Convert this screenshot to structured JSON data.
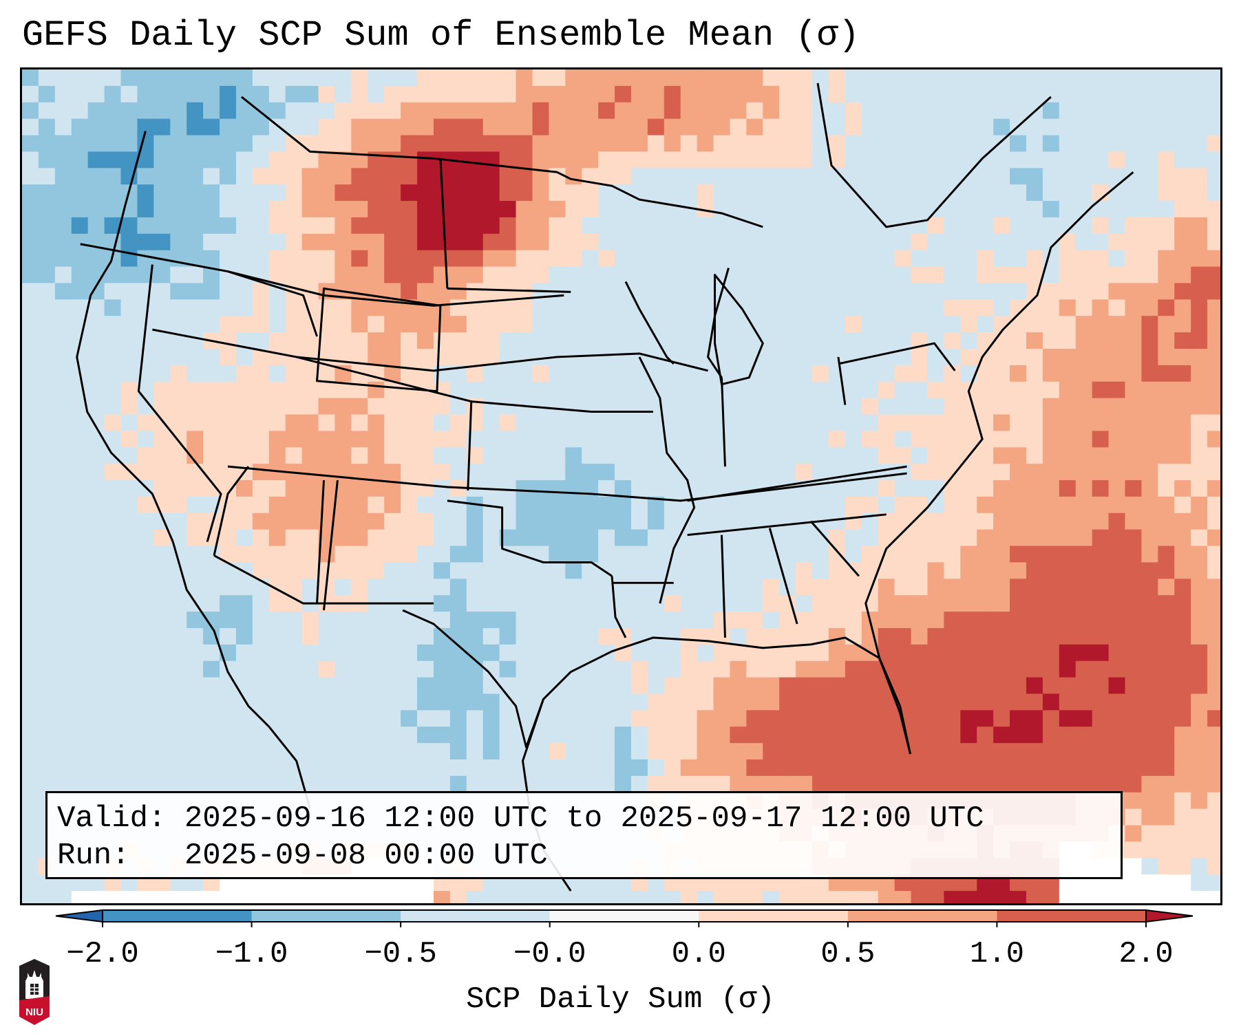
{
  "title": "GEFS Daily SCP Sum of Ensemble Mean (σ)",
  "info_box": {
    "valid_line": "Valid: 2025-09-16 12:00 UTC to 2025-09-17 12:00 UTC",
    "run_line": "Run:   2025-09-08 00:00 UTC"
  },
  "logo": {
    "text": "NIU",
    "colors": {
      "top": "#231f20",
      "bottom": "#c8102e"
    }
  },
  "chart_data": {
    "type": "heatmap",
    "title": "GEFS Daily SCP Sum of Ensemble Mean (σ)",
    "variable": "SCP Daily Sum (σ)",
    "region": "Contiguous United States and adjacent Canada, Mexico, Gulf of Mexico, western Atlantic",
    "valid_start": "2025-09-16 12:00 UTC",
    "valid_end": "2025-09-17 12:00 UTC",
    "run": "2025-09-08 00:00 UTC",
    "colorbar": {
      "label": "SCP Daily Sum (σ)",
      "ticks": [
        "-2.0",
        "-1.0",
        "-0.5",
        "-0.0",
        "0.0",
        "0.5",
        "1.0",
        "2.0"
      ],
      "bounds": [
        -2.0,
        -1.0,
        -0.5,
        -0.0,
        0.0,
        0.5,
        1.0,
        2.0
      ],
      "colors": [
        "#4393c3",
        "#92c5de",
        "#d1e5f0",
        "#f7f7f7",
        "#fddbc7",
        "#f4a582",
        "#d6604d"
      ],
      "extend_min_color": "#2166ac",
      "extend_max_color": "#b2182b",
      "extend": "both",
      "orientation": "horizontal",
      "placement": "bottom"
    },
    "features": [
      {
        "region": "central/eastern Montana",
        "value_range": "1.0 to >2.0",
        "note": "maximum over land"
      },
      {
        "region": "Wyoming / western Dakotas",
        "value_range": "0.5 to 1.0"
      },
      {
        "region": "southern Saskatchewan / Manitoba",
        "value_range": "0.0 to 1.0"
      },
      {
        "region": "Utah, Arizona, New Mexico, Colorado plateau",
        "value_range": "0.0 to 0.5, isolated 0.5-1.0"
      },
      {
        "region": "Gulf of Mexico (central/eastern)",
        "value_range": "0.5 to 1.0"
      },
      {
        "region": "western Atlantic off Southeast US / Bahamas",
        "value_range": "0.5 to 1.0"
      },
      {
        "region": "Florida / Southeast coast",
        "value_range": "0.0 to 0.5"
      },
      {
        "region": "southern Mexico / Yucatan",
        "value_range": "1.0 to >2.0"
      },
      {
        "region": "Pacific Northwest offshore, southern BC",
        "value_range": "-1.0 to -0.5"
      },
      {
        "region": "western Texas / Oklahoma",
        "value_range": "-1.0 to -0.5"
      },
      {
        "region": "Plains, Midwest, Great Lakes, Northeast",
        "value_range": "-0.5 to -0.0"
      }
    ]
  }
}
